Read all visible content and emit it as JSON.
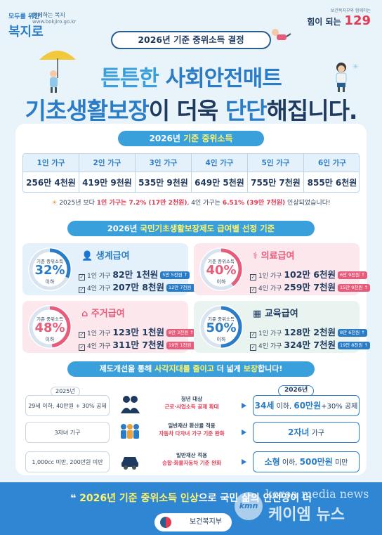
{
  "header": {
    "left_logo_mark": "복지로",
    "left_logo_small": "모두를 위한",
    "left_logo_tag": "함께하는 복지",
    "left_logo_url": "www.bokjiro.go.kr",
    "right_logo_mini": "보건복지부와 함께하는",
    "right_logo_big": "힘이 되는",
    "right_logo_num": "129"
  },
  "title_pill": "2026년 기준 중위소득 결정",
  "headline": {
    "line1_a": "튼튼한 ",
    "line1_b": "사회안전매트",
    "line2_a": "기초생활보장",
    "line2_b": "이 더욱 ",
    "line2_c": "단단",
    "line2_d": "해집니다."
  },
  "median_income": {
    "pill_a": "2026년 ",
    "pill_b": "기준 중위소득",
    "columns": [
      {
        "label": "1인 가구",
        "value": "256만 4천원"
      },
      {
        "label": "2인 가구",
        "value": "419만 9천원"
      },
      {
        "label": "3인 가구",
        "value": "535만 9천원"
      },
      {
        "label": "4인 가구",
        "value": "649만 5천원"
      },
      {
        "label": "5인 가구",
        "value": "755만 7천원"
      },
      {
        "label": "6인 가구",
        "value": "855만 6천원"
      }
    ],
    "note_a": "2025년 보다 ",
    "note_b": "1인 가구는 7.2% (17만 2천원)",
    "note_c": ", 4인 가구는 ",
    "note_d": "6.51% (39만 7천원)",
    "note_e": " 인상되었습니다!"
  },
  "benefits": {
    "pill_a": "2026년 ",
    "pill_b": "국민기초생활보장제도 급여별 선정 기준",
    "ring_top": "기준 중위소득",
    "ring_bottom": "이하",
    "items": [
      {
        "name": "생계급여",
        "pct": "32%",
        "pct_value": 32,
        "row1_label": "1인 가구",
        "row1_value": "82만 1천원",
        "row1_tag": "5만 5천원 ↑",
        "row2_label": "4인 가구",
        "row2_value": "207만 8천원",
        "row2_tag": "12만 7천원 ↑"
      },
      {
        "name": "의료급여",
        "pct": "40%",
        "pct_value": 40,
        "row1_label": "1인 가구",
        "row1_value": "102만 6천원",
        "row1_tag": "6만 9천원 ↑",
        "row2_label": "4인 가구",
        "row2_value": "259만 7천원",
        "row2_tag": "15만 9천원 ↑"
      },
      {
        "name": "주거급여",
        "pct": "48%",
        "pct_value": 48,
        "row1_label": "1인 가구",
        "row1_value": "123만 1천원",
        "row1_tag": "8만 3천원 ↑",
        "row2_label": "4인 가구",
        "row2_value": "311만 7천원",
        "row2_tag": "19만 1천원 ↑"
      },
      {
        "name": "교육급여",
        "pct": "50%",
        "pct_value": 50,
        "row1_label": "1인 가구",
        "row1_value": "128만 2천원",
        "row1_tag": "8만 6천원 ↑",
        "row2_label": "4인 가구",
        "row2_value": "324만 7천원",
        "row2_tag": "19만 8천원 ↑"
      }
    ]
  },
  "improvements": {
    "pill_a": "제도개선을 통해 ",
    "pill_b": "사각지대를 줄이고",
    "pill_c": " 더 넓게 ",
    "pill_d": "보장",
    "pill_e": "합니다!",
    "year_old": "2025년",
    "year_new": "2026년",
    "rows": [
      {
        "old": "29세 이하, 40만원 + 30% 공제",
        "mid1": "청년 대상",
        "mid2": "근로·사업소득 공제 확대",
        "new_a": "34세",
        "new_b": " 이하, ",
        "new_c": "60만원",
        "new_d": "+30% 공제"
      },
      {
        "old": "3자녀 가구",
        "mid1": "일반재산 환산율 적용",
        "mid2": "자동차 다자녀 가구 기준 완화",
        "new_a": "2자녀",
        "new_b": " 가구",
        "new_c": "",
        "new_d": ""
      },
      {
        "old": "1,000cc 미만, 200만원 미만",
        "mid1": "일반재산 적용",
        "mid2": "승합·화물자동차 기준 완화",
        "new_a": "소형",
        "new_b": " 이하, ",
        "new_c": "500만원",
        "new_d": " 미만"
      }
    ]
  },
  "footer": {
    "line_a": "2026년 기준 중위소득 인상",
    "line_b": "으로 국민 삶의 ",
    "line_c": "안전망이 더",
    "ministry": "보건복지부",
    "wm_en": "korea media news",
    "wm_ko": "케이엠 뉴스",
    "kmn": "kmn"
  },
  "colors": {
    "primary": "#2a7cc7",
    "navy": "#1f3a5f",
    "accent_red": "#e23b54",
    "ring_pink": "#e75c7a",
    "ring_blue": "#2a7cc7"
  }
}
